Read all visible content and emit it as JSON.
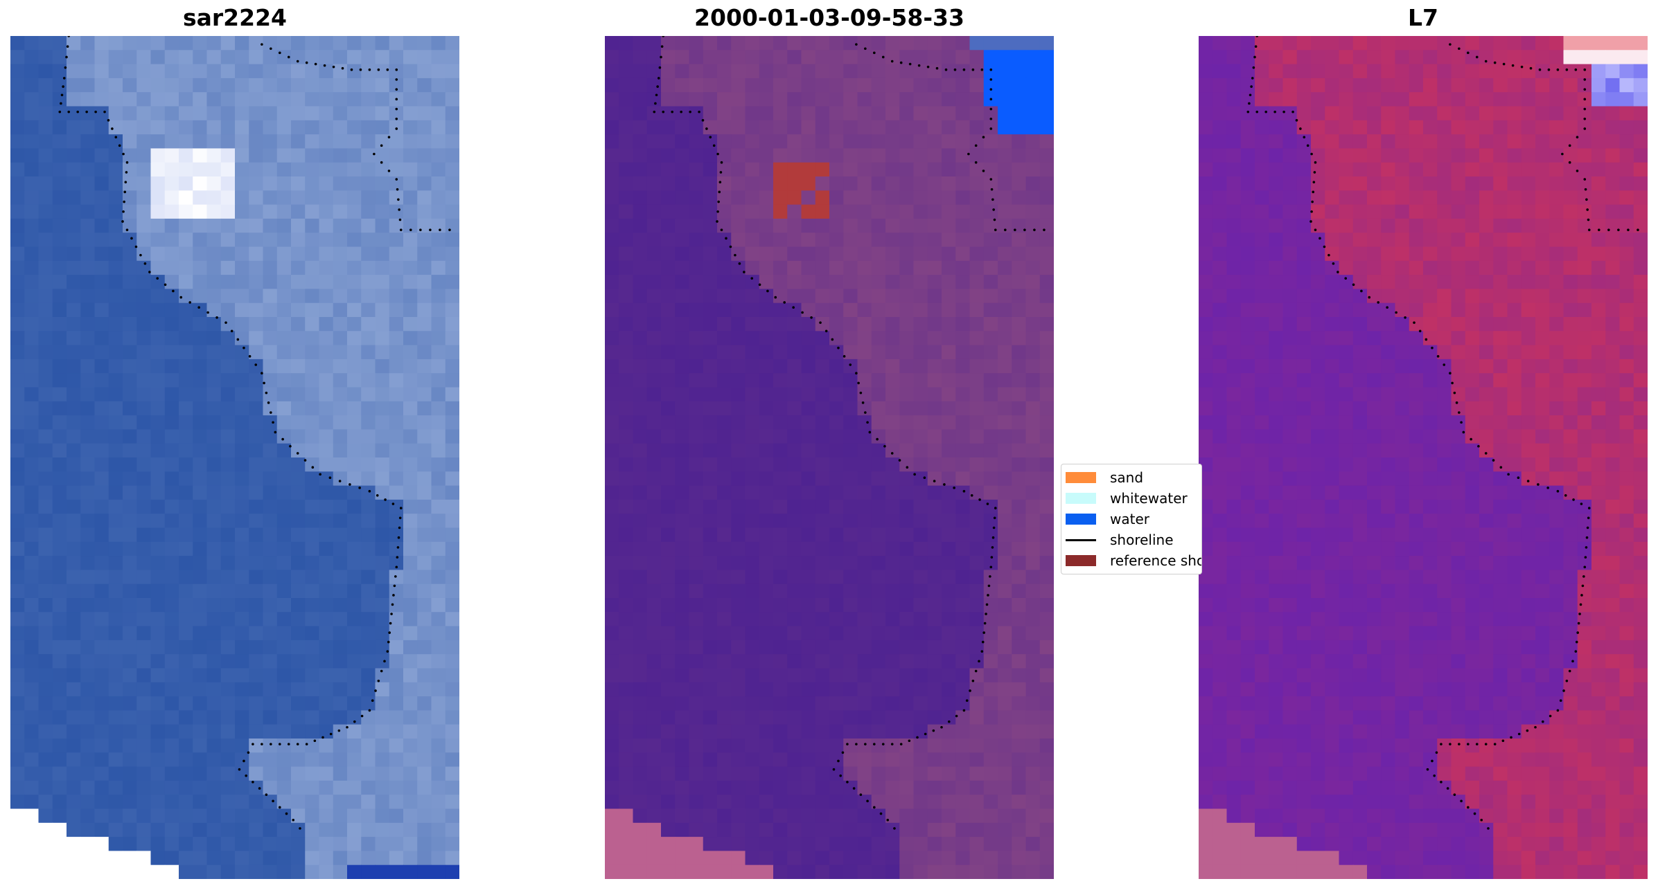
{
  "panels": [
    {
      "title": "sar2224",
      "type": "rgb-image"
    },
    {
      "title": "2000-01-03-09-58-33",
      "type": "classified-image"
    },
    {
      "title": "L7",
      "type": "mndwi-image"
    }
  ],
  "legend": {
    "items": [
      {
        "label": "sand",
        "kind": "patch",
        "color": "#ff8c3a"
      },
      {
        "label": "whitewater",
        "kind": "patch",
        "color": "#c8fbfb"
      },
      {
        "label": "water",
        "kind": "patch",
        "color": "#0a5ff0"
      },
      {
        "label": "shoreline",
        "kind": "line",
        "color": "#000000"
      },
      {
        "label": "reference shoreline",
        "kind": "patch",
        "color": "#8c2a2a"
      }
    ]
  },
  "colors": {
    "sar_water": "#2e57a8",
    "sar_land": "#8fa7d6",
    "class_water": "#4f2391",
    "class_land": "#874684",
    "class_blue": "#0a5cff",
    "class_redpatch": "#b23b3b",
    "mndwi_water": "#6e24a8",
    "mndwi_land": "#c8325f",
    "nodata_pink": "#bb6190",
    "nodata_white": "#ffffff",
    "shoreline_dots": "#000000"
  }
}
